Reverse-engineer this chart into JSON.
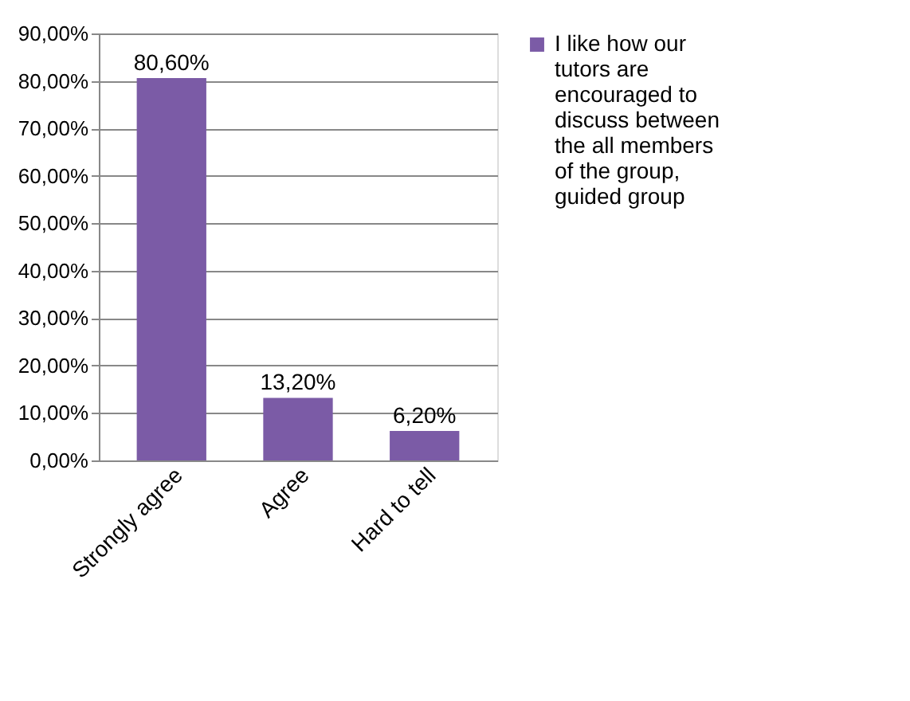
{
  "chart_data": {
    "type": "bar",
    "categories": [
      "Strongly agree",
      "Agree",
      "Hard to tell"
    ],
    "series": [
      {
        "name": "I like how our tutors are encouraged to discuss between the all members of the group, guided group",
        "color": "#7b5ba6",
        "values": [
          80.6,
          13.2,
          6.2
        ],
        "value_labels": [
          "80,60%",
          "13,20%",
          "6,20%"
        ]
      }
    ],
    "ylim": [
      0,
      90
    ],
    "yticks": [
      {
        "value": 0,
        "label": "0,00%"
      },
      {
        "value": 10,
        "label": "10,00%"
      },
      {
        "value": 20,
        "label": "20,00%"
      },
      {
        "value": 30,
        "label": "30,00%"
      },
      {
        "value": 40,
        "label": "40,00%"
      },
      {
        "value": 50,
        "label": "50,00%"
      },
      {
        "value": 60,
        "label": "60,00%"
      },
      {
        "value": 70,
        "label": "70,00%"
      },
      {
        "value": 80,
        "label": "80,00%"
      },
      {
        "value": 90,
        "label": "90,00%"
      }
    ],
    "grid": "y",
    "legend": "right"
  }
}
